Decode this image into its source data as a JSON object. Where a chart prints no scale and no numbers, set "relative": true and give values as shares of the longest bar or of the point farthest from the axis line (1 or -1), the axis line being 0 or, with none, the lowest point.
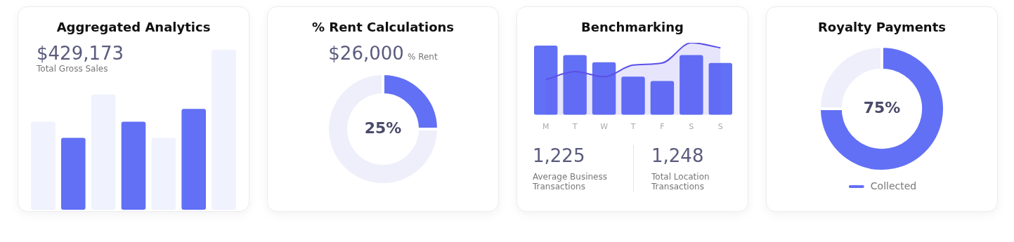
{
  "chart_data": [
    {
      "type": "bar",
      "title": "Aggregated Analytics",
      "relative": true,
      "categories": [
        null,
        null,
        null,
        null,
        null,
        null,
        null
      ],
      "values": [
        0.55,
        0.45,
        0.72,
        0.55,
        0.45,
        0.63,
        1
      ],
      "colors": [
        "#f0f2fd",
        "#6270f5",
        "#f0f2fd",
        "#6270f5",
        "#f0f2fd",
        "#6270f5",
        "#f0f2fd"
      ],
      "annotations": [
        "$429,173",
        "Total Gross Sales"
      ]
    },
    {
      "type": "donut",
      "title": "% Rent Calculations",
      "categories": [
        null,
        null
      ],
      "values": [
        25,
        75
      ],
      "colors": [
        "#6270f5",
        "#efeffb"
      ],
      "value_labels": [
        "25%",
        null
      ],
      "annotations": [
        "$26,000",
        "% Rent"
      ]
    },
    {
      "type": "bar",
      "title": "Benchmarking",
      "relative": true,
      "categories": [
        "M",
        "T",
        "W",
        "T",
        "F",
        "S",
        "S"
      ],
      "series": [
        {
          "type": "bar",
          "color": "#6270f5",
          "values": [
            0.96,
            0.83,
            0.73,
            0.53,
            0.47,
            0.83,
            0.72
          ]
        },
        {
          "type": "area",
          "color": "#5b4fe9",
          "values": [
            0.49,
            0.6,
            0.53,
            0.69,
            0.72,
            1,
            0.93
          ]
        }
      ],
      "annotations": [
        "1,225",
        "Average Business Transactions",
        "1,248",
        "Total Location Transactions"
      ]
    },
    {
      "type": "donut",
      "title": "Royalty Payments",
      "categories": [
        "Collected",
        null
      ],
      "values": [
        75,
        25
      ],
      "colors": [
        "#6270f5",
        "#efeffb"
      ],
      "value_labels": [
        "75%",
        null
      ],
      "legend": "bottom"
    }
  ]
}
